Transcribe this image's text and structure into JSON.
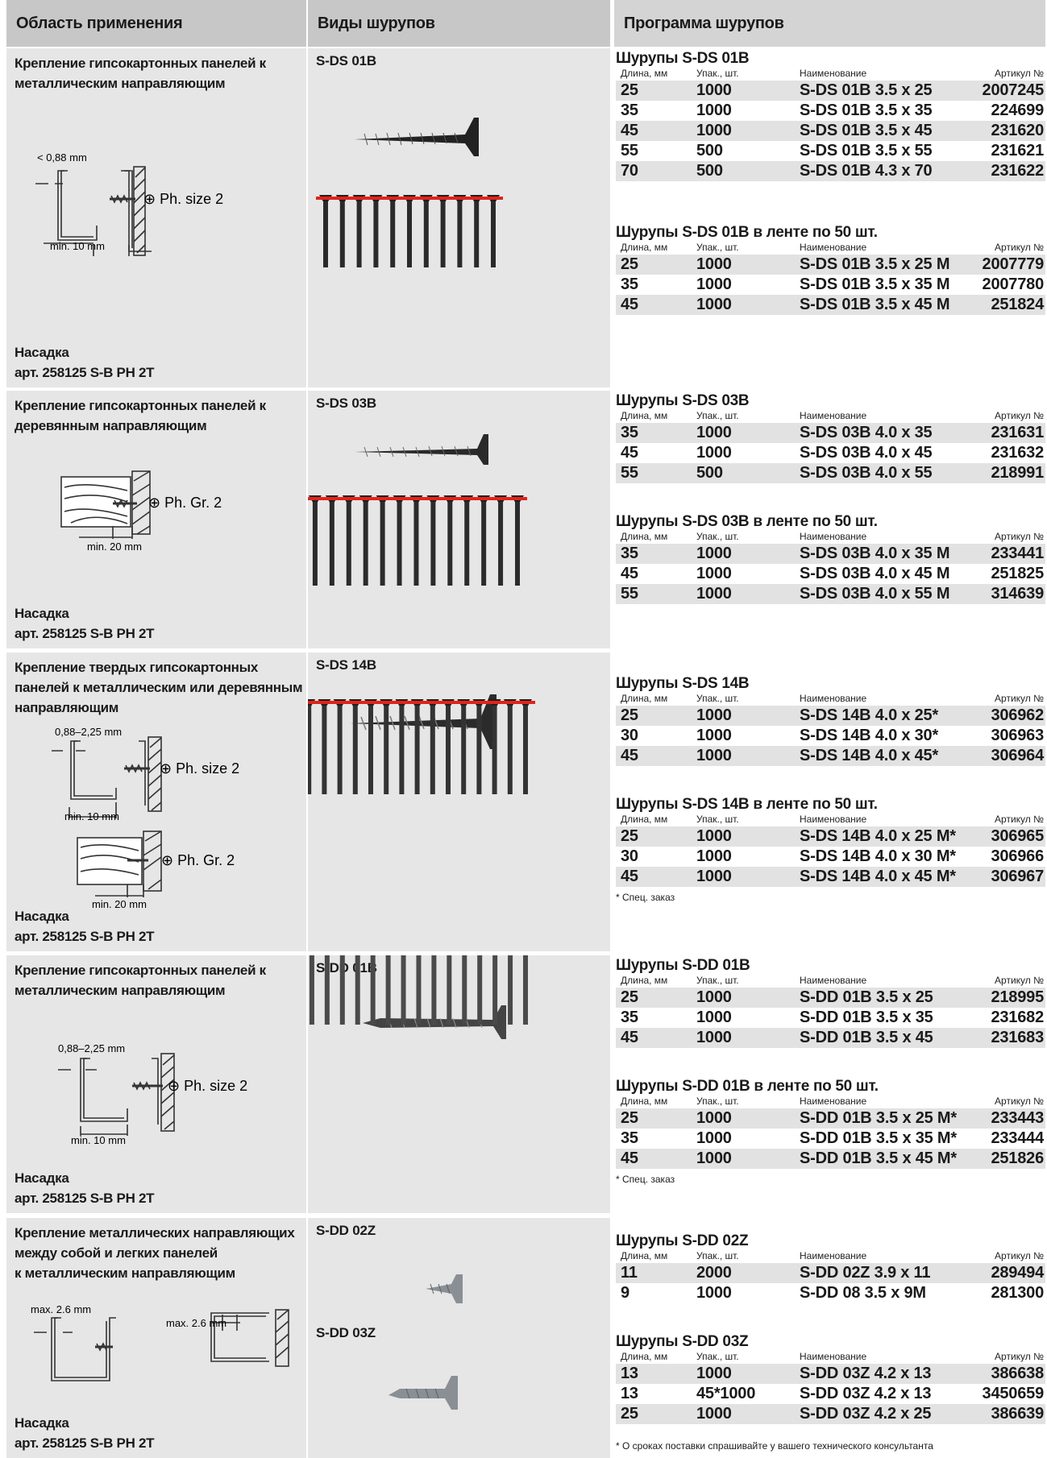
{
  "headers": {
    "application": "Область применения",
    "types": "Виды шурупов",
    "program": "Программа шурупов"
  },
  "col_headers": {
    "length": "Длина, мм",
    "pack": "Упак., шт.",
    "name": "Наименование",
    "article": "Артикул №"
  },
  "sections": [
    {
      "application": [
        "Крепление гипсокартонных панелей к",
        "металлическим направляющим"
      ],
      "nasadka": [
        "Насадка",
        "арт. 258125 S-B PH 2T"
      ],
      "types": [
        "S-DS 01B"
      ],
      "diagram_labels": [
        "< 0,88 mm",
        "⊕ Ph. size 2",
        "min. 10 mm"
      ],
      "groups": [
        {
          "title": "Шурупы S-DS 01B",
          "rows": [
            [
              "25",
              "1000",
              "S-DS 01B 3.5 x 25",
              "2007245"
            ],
            [
              "35",
              "1000",
              "S-DS 01B 3.5 x 35",
              "224699"
            ],
            [
              "45",
              "1000",
              "S-DS 01B 3.5 x 45",
              "231620"
            ],
            [
              "55",
              "500",
              "S-DS 01B 3.5 x 55",
              "231621"
            ],
            [
              "70",
              "500",
              "S-DS 01B 4.3 x 70",
              "231622"
            ]
          ]
        },
        {
          "title": "Шурупы S-DS 01B в ленте по 50 шт.",
          "rows": [
            [
              "25",
              "1000",
              "S-DS 01B 3.5 x 25 M",
              "2007779"
            ],
            [
              "35",
              "1000",
              "S-DS 01B 3.5 x 35 M",
              "2007780"
            ],
            [
              "45",
              "1000",
              "S-DS 01B 3.5 x 45 M",
              "251824"
            ]
          ]
        }
      ]
    },
    {
      "application": [
        "Крепление гипсокартонных панелей к",
        "деревянным направляющим"
      ],
      "nasadka": [
        "Насадка",
        "арт. 258125 S-B PH 2T"
      ],
      "types": [
        "S-DS 03B"
      ],
      "diagram_labels": [
        "⊕ Ph. Gr. 2",
        "min. 20 mm"
      ],
      "groups": [
        {
          "title": "Шурупы S-DS 03B",
          "rows": [
            [
              "35",
              "1000",
              "S-DS 03B 4.0 x 35",
              "231631"
            ],
            [
              "45",
              "1000",
              "S-DS 03B 4.0 x 45",
              "231632"
            ],
            [
              "55",
              "500",
              "S-DS 03B 4.0 x 55",
              "218991"
            ]
          ]
        },
        {
          "title": "Шурупы S-DS 03B в ленте по 50 шт.",
          "rows": [
            [
              "35",
              "1000",
              "S-DS 03B 4.0 x 35 M",
              "233441"
            ],
            [
              "45",
              "1000",
              "S-DS 03B 4.0 x 45 M",
              "251825"
            ],
            [
              "55",
              "1000",
              "S-DS 03B 4.0 x 55 M",
              "314639"
            ]
          ]
        }
      ]
    },
    {
      "application": [
        "Крепление твердых гипсокартонных",
        "панелей к металлическим или деревянным",
        "направляющим"
      ],
      "nasadka": [
        "Насадка",
        "арт. 258125 S-B PH 2T"
      ],
      "types": [
        "S-DS 14B"
      ],
      "diagram_labels": [
        "0,88–2,25 mm",
        "⊕ Ph. size 2",
        "min. 10 mm",
        "⊕ Ph. Gr. 2",
        "min. 20 mm"
      ],
      "groups": [
        {
          "title": "Шурупы S-DS 14B",
          "rows": [
            [
              "25",
              "1000",
              "S-DS 14B 4.0 x 25*",
              "306962"
            ],
            [
              "30",
              "1000",
              "S-DS 14B 4.0 x 30*",
              "306963"
            ],
            [
              "45",
              "1000",
              "S-DS 14B 4.0 x 45*",
              "306964"
            ]
          ]
        },
        {
          "title": "Шурупы S-DS 14B в ленте по 50 шт.",
          "rows": [
            [
              "25",
              "1000",
              "S-DS 14B 4.0 x 25 M*",
              "306965"
            ],
            [
              "30",
              "1000",
              "S-DS 14B 4.0 x 30 M*",
              "306966"
            ],
            [
              "45",
              "1000",
              "S-DS 14B 4.0 x 45 M*",
              "306967"
            ]
          ],
          "note": "* Спец. заказ"
        }
      ]
    },
    {
      "application": [
        "Крепление гипсокартонных панелей к",
        "металлическим направляющим"
      ],
      "nasadka": [
        "Насадка",
        "арт. 258125 S-B PH 2T"
      ],
      "types": [
        "S-DD 01B"
      ],
      "diagram_labels": [
        "0,88–2,25 mm",
        "⊕ Ph. size 2",
        "min. 10 mm"
      ],
      "groups": [
        {
          "title": "Шурупы S-DD 01B",
          "rows": [
            [
              "25",
              "1000",
              "S-DD 01B 3.5 x 25",
              "218995"
            ],
            [
              "35",
              "1000",
              "S-DD 01B 3.5 x 35",
              "231682"
            ],
            [
              "45",
              "1000",
              "S-DD 01B 3.5 x 45",
              "231683"
            ]
          ]
        },
        {
          "title": "Шурупы S-DD 01B в ленте по 50 шт.",
          "rows": [
            [
              "25",
              "1000",
              "S-DD 01B 3.5 x 25 M*",
              "233443"
            ],
            [
              "35",
              "1000",
              "S-DD 01B 3.5 x 35 M*",
              "233444"
            ],
            [
              "45",
              "1000",
              "S-DD 01B 3.5 x 45 M*",
              "251826"
            ]
          ],
          "note": "* Спец. заказ"
        }
      ]
    },
    {
      "application": [
        "Крепление металлических направляющих",
        "между собой и легких панелей",
        "к металлическим направляющим"
      ],
      "nasadka": [
        "Насадка",
        "арт. 258125 S-B PH 2T"
      ],
      "types": [
        "S-DD 02Z",
        "S-DD 03Z"
      ],
      "diagram_labels": [
        "max. 2.6 mm",
        "max. 2.6 mm"
      ],
      "groups": [
        {
          "title": "Шурупы S-DD 02Z",
          "rows": [
            [
              "11",
              "2000",
              "S-DD 02Z 3.9 x 11",
              "289494"
            ],
            [
              " 9",
              "1000",
              "S-DD 08  3.5 x 9M",
              "281300"
            ]
          ]
        },
        {
          "title": "Шурупы S-DD 03Z",
          "rows": [
            [
              "13",
              "1000",
              "S-DD 03Z 4.2 x 13",
              "386638"
            ],
            [
              "13",
              "45*1000",
              "S-DD 03Z 4.2 x 13",
              "3450659"
            ],
            [
              "25",
              "1000",
              "S-DD 03Z 4.2 x 25",
              "386639"
            ]
          ]
        }
      ]
    }
  ],
  "footnote": "* О сроках поставки спрашивайте у вашего технического консультанта"
}
